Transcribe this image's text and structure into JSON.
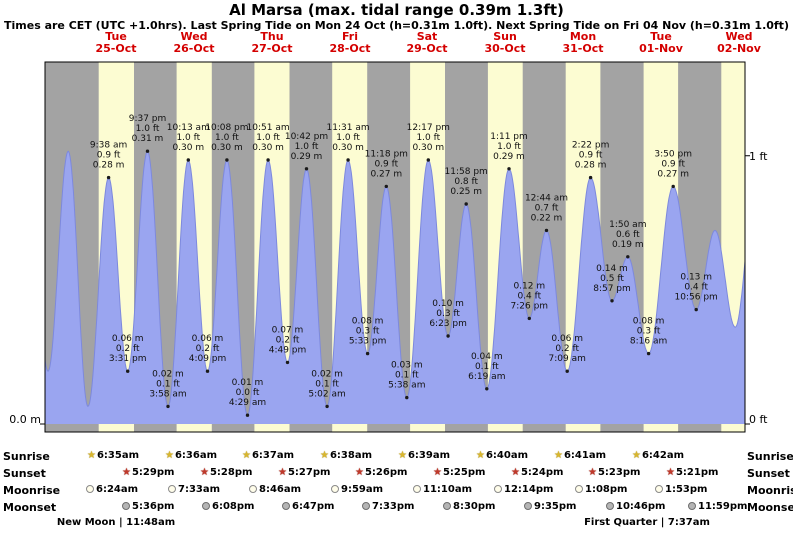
{
  "header": {
    "title": "Al Marsa (max. tidal range 0.39m 1.3ft)",
    "subtitle": "Times are CET (UTC +1.0hrs). Last Spring Tide on Mon 24 Oct (h=0.31m 1.0ft). Next Spring Tide on Fri 04 Nov (h=0.31m 1.0ft)"
  },
  "chart_data": {
    "type": "area",
    "title": "Al Marsa tide height curve",
    "ylabel": "tide height",
    "ylim_m": [
      0,
      0.42
    ],
    "grid": false,
    "day_columns": [
      {
        "name": "Tue",
        "date": "25-Oct"
      },
      {
        "name": "Wed",
        "date": "26-Oct"
      },
      {
        "name": "Thu",
        "date": "27-Oct"
      },
      {
        "name": "Fri",
        "date": "28-Oct"
      },
      {
        "name": "Sat",
        "date": "29-Oct"
      },
      {
        "name": "Sun",
        "date": "30-Oct"
      },
      {
        "name": "Mon",
        "date": "31-Oct"
      },
      {
        "name": "Tue",
        "date": "01-Nov"
      },
      {
        "name": "Wed",
        "date": "02-Nov"
      }
    ],
    "y_ticks": [
      {
        "side": "left",
        "label": "0.0 m",
        "m": 0
      },
      {
        "side": "right",
        "label": "0 ft",
        "m": 0
      },
      {
        "side": "right",
        "label": "1 ft",
        "m": 0.3048
      }
    ],
    "colors": {
      "curve_fill": "#9aa5f0",
      "curve_stroke": "#7d89dd",
      "daylight_band": "#fcfcd2",
      "night_band": "#a3a3a3",
      "day_label": "#d40000"
    },
    "extremes": [
      {
        "d": 0,
        "t": "08:55",
        "m": 0.29,
        "kind": "high",
        "labeled": false
      },
      {
        "d": 0,
        "t": "14:55",
        "m": 0.06,
        "kind": "low",
        "labeled": false
      },
      {
        "d": 0,
        "t": "21:10",
        "m": 0.31,
        "kind": "high",
        "labeled": false
      },
      {
        "d": 1,
        "t": "03:15",
        "m": 0.02,
        "kind": "low",
        "labeled": false
      },
      {
        "d": 1,
        "t": "09:38",
        "m": 0.28,
        "kind": "high",
        "labeled": true,
        "lines": [
          "9:38 am",
          "0.9 ft",
          "0.28 m"
        ]
      },
      {
        "d": 1,
        "t": "15:31",
        "m": 0.06,
        "kind": "low",
        "labeled": true,
        "lines": [
          "0.06 m",
          "0.2 ft",
          "3:31 pm"
        ]
      },
      {
        "d": 1,
        "t": "21:37",
        "m": 0.31,
        "kind": "high",
        "labeled": true,
        "lines": [
          "9:37 pm",
          "1.0 ft",
          "0.31 m"
        ]
      },
      {
        "d": 2,
        "t": "03:58",
        "m": 0.02,
        "kind": "low",
        "labeled": true,
        "lines": [
          "0.02 m",
          "0.1 ft",
          "3:58 am"
        ]
      },
      {
        "d": 2,
        "t": "10:13",
        "m": 0.3,
        "kind": "high",
        "labeled": true,
        "lines": [
          "10:13 am",
          "1.0 ft",
          "0.30 m"
        ]
      },
      {
        "d": 2,
        "t": "16:09",
        "m": 0.06,
        "kind": "low",
        "labeled": true,
        "lines": [
          "0.06 m",
          "0.2 ft",
          "4:09 pm"
        ]
      },
      {
        "d": 2,
        "t": "22:08",
        "m": 0.3,
        "kind": "high",
        "labeled": true,
        "lines": [
          "10:08 pm",
          "1.0 ft",
          "0.30 m"
        ]
      },
      {
        "d": 3,
        "t": "04:29",
        "m": 0.01,
        "kind": "low",
        "labeled": true,
        "lines": [
          "0.01 m",
          "0.0 ft",
          "4:29 am"
        ]
      },
      {
        "d": 3,
        "t": "10:51",
        "m": 0.3,
        "kind": "high",
        "labeled": true,
        "lines": [
          "10:51 am",
          "1.0 ft",
          "0.30 m"
        ]
      },
      {
        "d": 3,
        "t": "16:49",
        "m": 0.07,
        "kind": "low",
        "labeled": true,
        "lines": [
          "0.07 m",
          "0.2 ft",
          "4:49 pm"
        ]
      },
      {
        "d": 3,
        "t": "22:42",
        "m": 0.29,
        "kind": "high",
        "labeled": true,
        "lines": [
          "10:42 pm",
          "1.0 ft",
          "0.29 m"
        ]
      },
      {
        "d": 4,
        "t": "05:02",
        "m": 0.02,
        "kind": "low",
        "labeled": true,
        "lines": [
          "0.02 m",
          "0.1 ft",
          "5:02 am"
        ]
      },
      {
        "d": 4,
        "t": "11:31",
        "m": 0.3,
        "kind": "high",
        "labeled": true,
        "lines": [
          "11:31 am",
          "1.0 ft",
          "0.30 m"
        ]
      },
      {
        "d": 4,
        "t": "17:33",
        "m": 0.08,
        "kind": "low",
        "labeled": true,
        "lines": [
          "0.08 m",
          "0.3 ft",
          "5:33 pm"
        ]
      },
      {
        "d": 4,
        "t": "23:18",
        "m": 0.27,
        "kind": "high",
        "labeled": true,
        "lines": [
          "11:18 pm",
          "0.9 ft",
          "0.27 m"
        ]
      },
      {
        "d": 5,
        "t": "05:38",
        "m": 0.03,
        "kind": "low",
        "labeled": true,
        "lines": [
          "0.03 m",
          "0.1 ft",
          "5:38 am"
        ]
      },
      {
        "d": 5,
        "t": "12:17",
        "m": 0.3,
        "kind": "high",
        "labeled": true,
        "lines": [
          "12:17 pm",
          "1.0 ft",
          "0.30 m"
        ]
      },
      {
        "d": 5,
        "t": "18:23",
        "m": 0.1,
        "kind": "low",
        "labeled": true,
        "lines": [
          "0.10 m",
          "0.3 ft",
          "6:23 pm"
        ]
      },
      {
        "d": 5,
        "t": "23:58",
        "m": 0.25,
        "kind": "high",
        "labeled": true,
        "lines": [
          "11:58 pm",
          "0.8 ft",
          "0.25 m"
        ]
      },
      {
        "d": 6,
        "t": "06:19",
        "m": 0.04,
        "kind": "low",
        "labeled": true,
        "lines": [
          "0.04 m",
          "0.1 ft",
          "6:19 am"
        ]
      },
      {
        "d": 6,
        "t": "13:11",
        "m": 0.29,
        "kind": "high",
        "labeled": true,
        "lines": [
          "1:11 pm",
          "1.0 ft",
          "0.29 m"
        ]
      },
      {
        "d": 6,
        "t": "19:26",
        "m": 0.12,
        "kind": "low",
        "labeled": true,
        "lines": [
          "0.12 m",
          "0.4 ft",
          "7:26 pm"
        ]
      },
      {
        "d": 7,
        "t": "00:44",
        "m": 0.22,
        "kind": "high",
        "labeled": true,
        "lines": [
          "12:44 am",
          "0.7 ft",
          "0.22 m"
        ]
      },
      {
        "d": 7,
        "t": "07:09",
        "m": 0.06,
        "kind": "low",
        "labeled": true,
        "lines": [
          "0.06 m",
          "0.2 ft",
          "7:09 am"
        ]
      },
      {
        "d": 7,
        "t": "14:22",
        "m": 0.28,
        "kind": "high",
        "labeled": true,
        "lines": [
          "2:22 pm",
          "0.9 ft",
          "0.28 m"
        ]
      },
      {
        "d": 7,
        "t": "20:57",
        "m": 0.14,
        "kind": "low",
        "labeled": true,
        "lines": [
          "0.14 m",
          "0.5 ft",
          "8:57 pm"
        ]
      },
      {
        "d": 8,
        "t": "01:50",
        "m": 0.19,
        "kind": "high",
        "labeled": true,
        "lines": [
          "1:50 am",
          "0.6 ft",
          "0.19 m"
        ]
      },
      {
        "d": 8,
        "t": "08:16",
        "m": 0.08,
        "kind": "low",
        "labeled": true,
        "lines": [
          "0.08 m",
          "0.3 ft",
          "8:16 am"
        ]
      },
      {
        "d": 8,
        "t": "15:50",
        "m": 0.27,
        "kind": "high",
        "labeled": true,
        "lines": [
          "3:50 pm",
          "0.9 ft",
          "0.27 m"
        ]
      },
      {
        "d": 8,
        "t": "22:56",
        "m": 0.13,
        "kind": "low",
        "labeled": true,
        "lines": [
          "0.13 m",
          "0.4 ft",
          "10:56 pm"
        ]
      },
      {
        "d": 9,
        "t": "04:45",
        "m": 0.22,
        "kind": "high",
        "labeled": false
      },
      {
        "d": 9,
        "t": "11:00",
        "m": 0.11,
        "kind": "low",
        "labeled": false
      },
      {
        "d": 9,
        "t": "17:00",
        "m": 0.26,
        "kind": "high",
        "labeled": false
      }
    ]
  },
  "astro": {
    "rows": [
      {
        "key": "sunrise",
        "label": "Sunrise",
        "icon_shape": "star",
        "icon": "sunrise-star-icon",
        "times": [
          "6:35am",
          "6:36am",
          "6:37am",
          "6:38am",
          "6:39am",
          "6:40am",
          "6:41am",
          "6:42am"
        ]
      },
      {
        "key": "sunset",
        "label": "Sunset",
        "icon_shape": "star",
        "icon": "sunset-star-icon",
        "times": [
          "5:29pm",
          "5:28pm",
          "5:27pm",
          "5:26pm",
          "5:25pm",
          "5:24pm",
          "5:23pm",
          "5:21pm"
        ]
      },
      {
        "key": "moonrise",
        "label": "Moonrise",
        "icon_shape": "disc",
        "icon": "moonrise-icon",
        "times": [
          "6:24am",
          "7:33am",
          "8:46am",
          "9:59am",
          "11:10am",
          "12:14pm",
          "1:08pm",
          "1:53pm"
        ]
      },
      {
        "key": "moonset",
        "label": "Moonset",
        "icon_shape": "disc",
        "icon": "moonset-icon",
        "times": [
          "5:36pm",
          "6:08pm",
          "6:47pm",
          "7:33pm",
          "8:30pm",
          "9:35pm",
          "10:46pm",
          "11:59pm"
        ]
      }
    ],
    "phases": [
      {
        "label": "New Moon",
        "time": "11:48am",
        "date": "25-Oct"
      },
      {
        "label": "First Quarter",
        "time": "7:37am",
        "date": "01-Nov"
      }
    ]
  }
}
